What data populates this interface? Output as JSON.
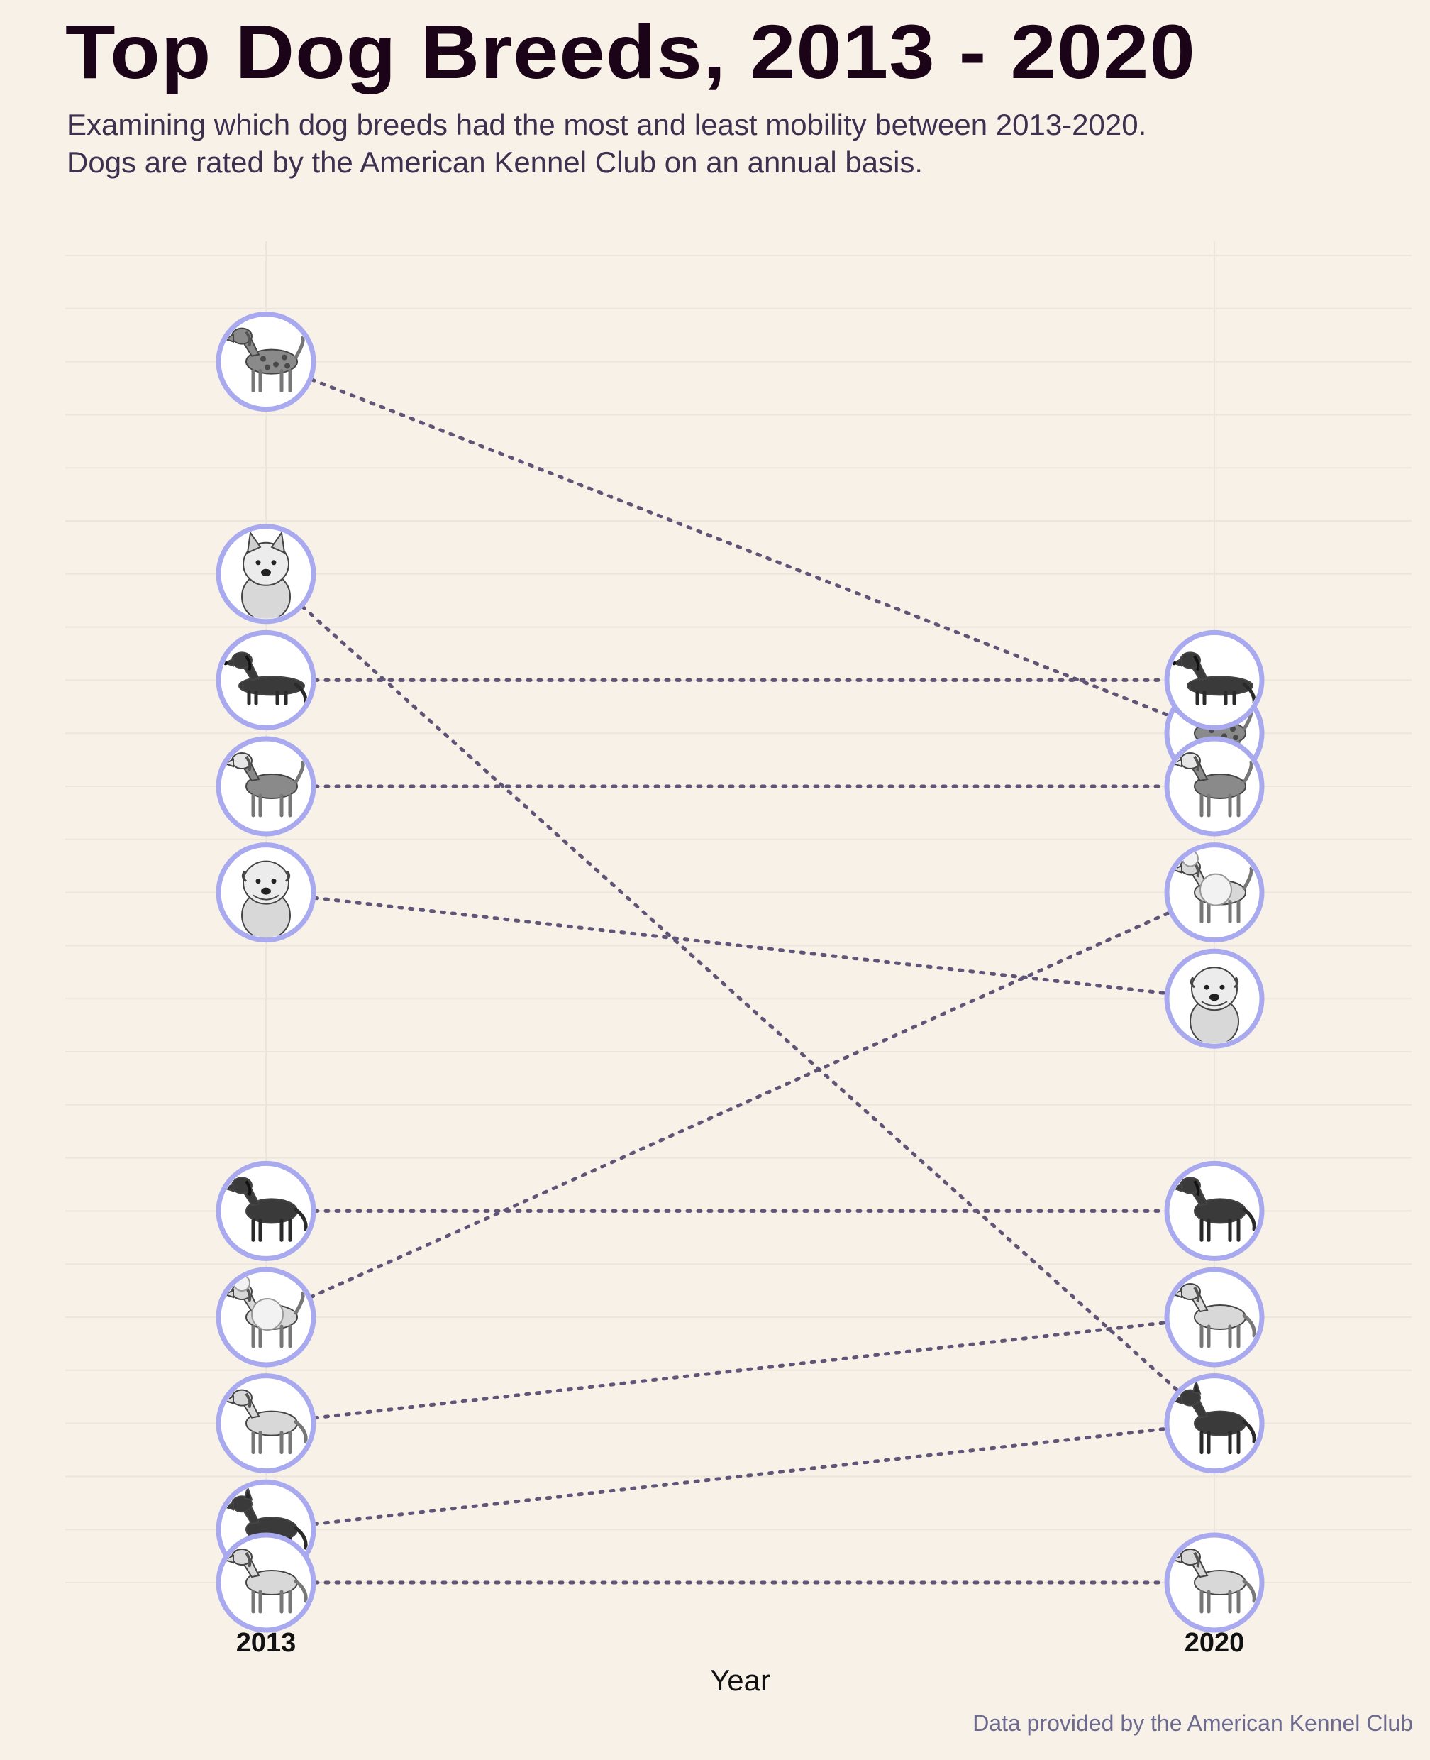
{
  "header": {
    "title": "Top Dog Breeds, 2013 - 2020",
    "subtitle_line1": "Examining which dog breeds had the most and least mobility between 2013-2020.",
    "subtitle_line2": "Dogs are rated by the American Kennel Club on an annual basis."
  },
  "caption": "Data provided by the American Kennel Club",
  "colors": {
    "background": "#f8f1e8",
    "title": "#1b0318",
    "subtitle": "#3d3150",
    "connector": "#5e5577",
    "circle_border": "#a9a9ef",
    "circle_fill": "#ffffff",
    "gridline": "#ece5dc",
    "caption": "#6d6a90",
    "axis_text": "#111111"
  },
  "chart_data": {
    "type": "slope",
    "x": [
      "2013",
      "2020"
    ],
    "xlabel": "Year",
    "ylabel": "",
    "y_reversed": true,
    "ylim": [
      1,
      26
    ],
    "grid": "horizontal",
    "legend": "none",
    "series": [
      {
        "breed_icon": "german-shorthaired-pointer",
        "values": [
          24,
          17
        ]
      },
      {
        "breed_icon": "french-bulldog",
        "values": [
          20,
          4
        ]
      },
      {
        "breed_icon": "dachshund",
        "values": [
          18,
          18
        ]
      },
      {
        "breed_icon": "beagle",
        "values": [
          16,
          16
        ]
      },
      {
        "breed_icon": "bulldog",
        "values": [
          14,
          12
        ]
      },
      {
        "breed_icon": "rottweiler",
        "values": [
          8,
          8
        ]
      },
      {
        "breed_icon": "poodle",
        "values": [
          6,
          14
        ]
      },
      {
        "breed_icon": "golden-retriever",
        "values": [
          4,
          6
        ]
      },
      {
        "breed_icon": "german-shepherd",
        "values": [
          2,
          4
        ]
      },
      {
        "breed_icon": "labrador-retriever",
        "values": [
          1,
          1
        ]
      }
    ]
  }
}
